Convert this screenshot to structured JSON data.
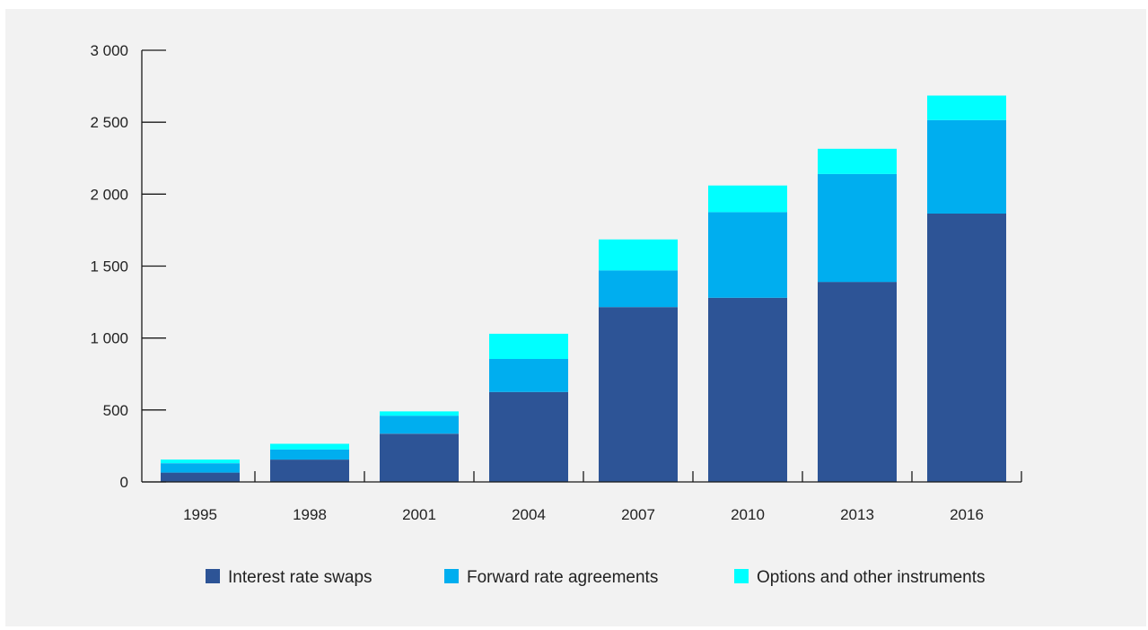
{
  "chart_data": {
    "type": "bar",
    "stacked": true,
    "categories": [
      "1995",
      "1998",
      "2001",
      "2004",
      "2007",
      "2010",
      "2013",
      "2016"
    ],
    "series": [
      {
        "name": "Interest rate swaps",
        "color": "#2d5496",
        "values": [
          65,
          155,
          335,
          625,
          1215,
          1280,
          1390,
          1865
        ]
      },
      {
        "name": "Forward rate agreements",
        "color": "#00aeef",
        "values": [
          65,
          70,
          125,
          230,
          255,
          595,
          750,
          650
        ]
      },
      {
        "name": "Options and other instruments",
        "color": "#00ffff",
        "values": [
          25,
          40,
          30,
          175,
          215,
          185,
          175,
          170
        ]
      }
    ],
    "yticks": [
      0,
      500,
      1000,
      1500,
      2000,
      2500,
      3000
    ],
    "ytick_labels": [
      "0",
      "500",
      "1 000",
      "1 500",
      "2 000",
      "2 500",
      "3 000"
    ],
    "ylim": [
      0,
      3000
    ],
    "title": "",
    "xlabel": "",
    "ylabel": "",
    "grid": false,
    "legend_position": "bottom"
  }
}
